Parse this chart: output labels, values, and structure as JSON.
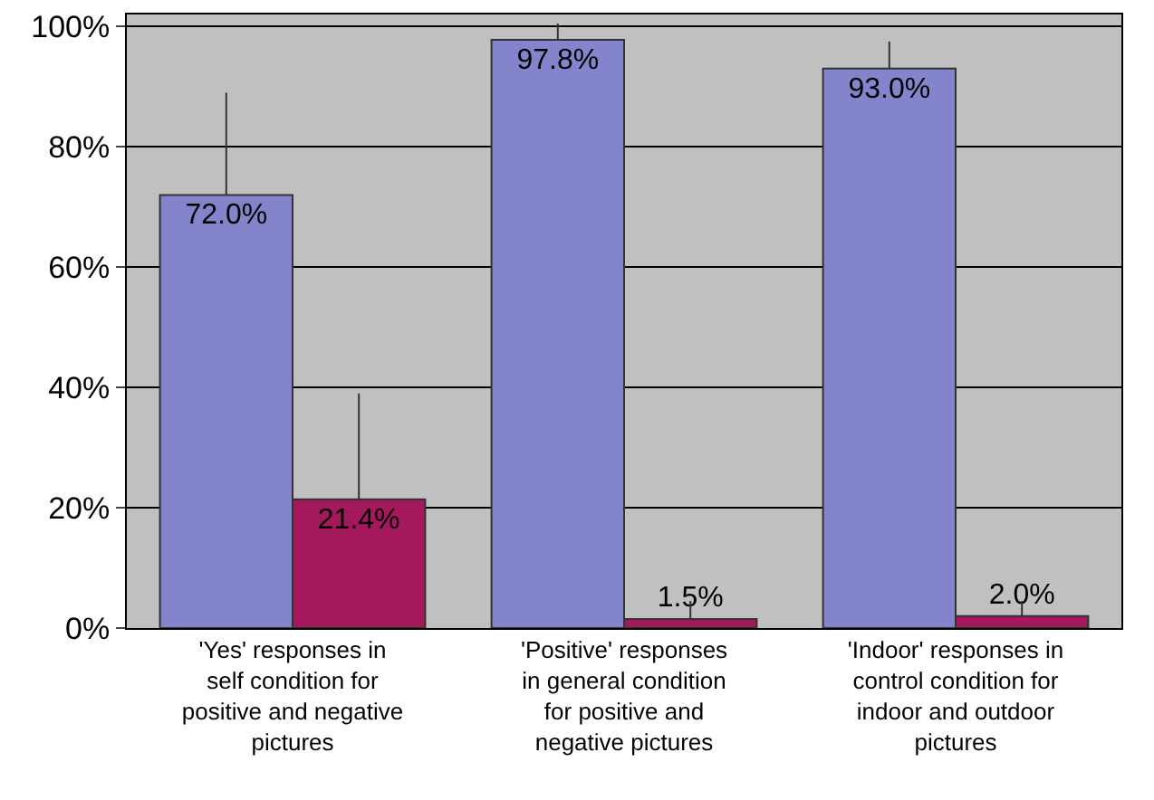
{
  "chart_data": {
    "type": "bar",
    "categories": [
      "'Yes' responses in self condition for positive and negative pictures",
      "'Positive' responses in general condition for positive and negative pictures",
      "'Indoor' responses in control condition for indoor and outdoor pictures"
    ],
    "series": [
      {
        "color": "#8484cc",
        "values": [
          72.0,
          97.8,
          93.0
        ],
        "value_labels": [
          "72.0%",
          "97.8%",
          "93.0%"
        ],
        "errors": [
          [
            72.0,
            89
          ],
          [
            97.8,
            100.5
          ],
          [
            93.0,
            97.5
          ]
        ]
      },
      {
        "color": "#a3195b",
        "values": [
          21.4,
          1.5,
          2.0
        ],
        "value_labels": [
          "21.4%",
          "1.5%",
          "2.0%"
        ],
        "errors": [
          [
            21.4,
            39
          ],
          [
            1.5,
            4.5
          ],
          [
            2.0,
            4.5
          ]
        ]
      }
    ],
    "ylim": [
      0,
      102
    ],
    "yticks": [
      {
        "value": 0,
        "label": "0%"
      },
      {
        "value": 20,
        "label": "20%"
      },
      {
        "value": 40,
        "label": "40%"
      },
      {
        "value": 60,
        "label": "60%"
      },
      {
        "value": 80,
        "label": "80%"
      },
      {
        "value": 100,
        "label": "100%"
      }
    ],
    "grid": "y"
  }
}
